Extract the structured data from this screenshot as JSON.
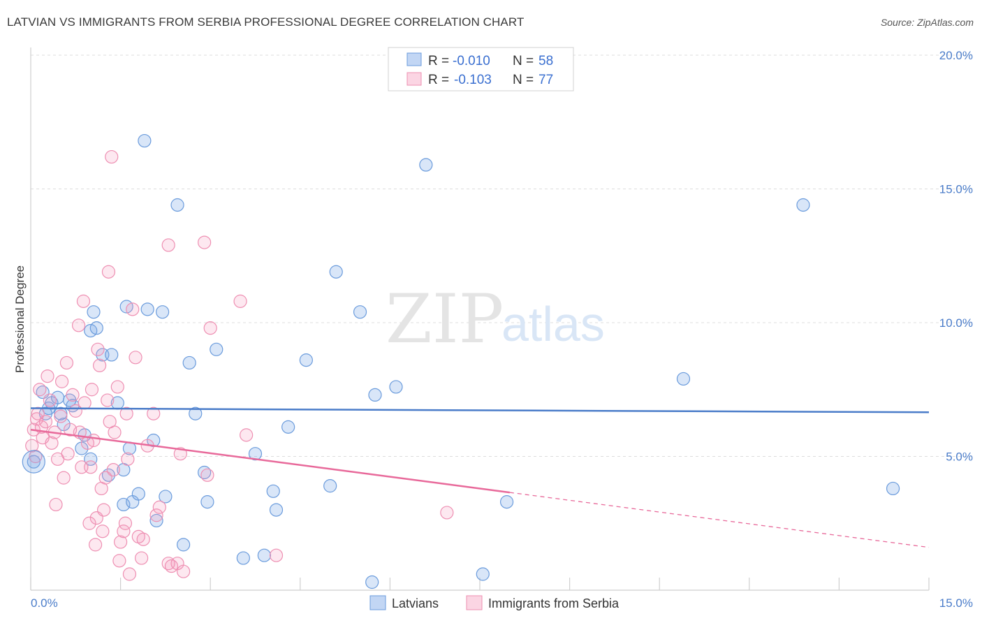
{
  "title": "LATVIAN VS IMMIGRANTS FROM SERBIA PROFESSIONAL DEGREE CORRELATION CHART",
  "source": "Source: ZipAtlas.com",
  "watermark": {
    "part1": "ZIP",
    "part2": "atlas"
  },
  "legend": {
    "r_label": "R =",
    "n_label": "N =",
    "rows": [
      {
        "name": "Latvians",
        "r": "-0.010",
        "n": "58",
        "color": "#6a9bdc"
      },
      {
        "name": "Immigrants from Serbia",
        "r": "-0.103",
        "n": "77",
        "color": "#ee8fb2"
      }
    ]
  },
  "chart_data": {
    "type": "scatter",
    "title": "LATVIAN VS IMMIGRANTS FROM SERBIA PROFESSIONAL DEGREE CORRELATION CHART",
    "xlabel": "",
    "ylabel": "Professional Degree",
    "xlim": [
      0,
      15
    ],
    "ylim": [
      0,
      20
    ],
    "x_tick_labels": [
      "0.0%",
      "15.0%"
    ],
    "y_ticks": [
      5,
      10,
      15,
      20
    ],
    "y_tick_labels": [
      "5.0%",
      "10.0%",
      "15.0%",
      "20.0%"
    ],
    "series": [
      {
        "name": "Latvians",
        "color": "#4a7cc9",
        "trend": {
          "x0": 0,
          "y0": 6.8,
          "x1": 15,
          "y1": 6.65,
          "solid_until": 15
        },
        "points": [
          [
            0.05,
            4.8
          ],
          [
            0.2,
            7.4
          ],
          [
            0.3,
            6.8
          ],
          [
            0.35,
            7.0
          ],
          [
            0.45,
            7.2
          ],
          [
            0.5,
            6.6
          ],
          [
            0.55,
            6.2
          ],
          [
            0.7,
            6.9
          ],
          [
            0.85,
            5.3
          ],
          [
            0.9,
            5.8
          ],
          [
            1.0,
            9.7
          ],
          [
            1.05,
            10.4
          ],
          [
            1.1,
            9.8
          ],
          [
            1.2,
            8.8
          ],
          [
            1.3,
            4.3
          ],
          [
            1.35,
            8.8
          ],
          [
            1.45,
            7.0
          ],
          [
            1.55,
            3.2
          ],
          [
            1.55,
            4.5
          ],
          [
            1.6,
            10.6
          ],
          [
            1.65,
            5.3
          ],
          [
            1.7,
            3.3
          ],
          [
            1.8,
            3.6
          ],
          [
            1.9,
            16.8
          ],
          [
            1.95,
            10.5
          ],
          [
            2.05,
            5.6
          ],
          [
            2.1,
            2.6
          ],
          [
            2.2,
            10.4
          ],
          [
            2.25,
            3.5
          ],
          [
            2.45,
            14.4
          ],
          [
            2.55,
            1.7
          ],
          [
            2.65,
            8.5
          ],
          [
            2.75,
            6.6
          ],
          [
            2.9,
            4.4
          ],
          [
            2.95,
            3.3
          ],
          [
            3.1,
            9.0
          ],
          [
            3.55,
            1.2
          ],
          [
            3.75,
            5.1
          ],
          [
            3.9,
            1.3
          ],
          [
            4.05,
            3.7
          ],
          [
            4.1,
            3.0
          ],
          [
            4.3,
            6.1
          ],
          [
            4.6,
            8.6
          ],
          [
            5.0,
            3.9
          ],
          [
            5.1,
            11.9
          ],
          [
            5.5,
            10.4
          ],
          [
            5.7,
            0.3
          ],
          [
            5.75,
            7.3
          ],
          [
            6.1,
            7.6
          ],
          [
            6.6,
            15.9
          ],
          [
            7.55,
            0.6
          ],
          [
            7.95,
            3.3
          ],
          [
            10.9,
            7.9
          ],
          [
            12.9,
            14.4
          ],
          [
            14.4,
            3.8
          ],
          [
            0.25,
            6.6
          ],
          [
            0.65,
            7.1
          ],
          [
            1.0,
            4.9
          ]
        ]
      },
      {
        "name": "Immigrants from Serbia",
        "color": "#e8699a",
        "trend": {
          "x0": 0,
          "y0": 6.0,
          "x1": 15,
          "y1": 1.6,
          "solid_until": 8.0
        },
        "points": [
          [
            0.02,
            5.4
          ],
          [
            0.05,
            6.0
          ],
          [
            0.08,
            5.0
          ],
          [
            0.1,
            6.4
          ],
          [
            0.15,
            7.5
          ],
          [
            0.2,
            5.7
          ],
          [
            0.25,
            6.3
          ],
          [
            0.28,
            8.0
          ],
          [
            0.32,
            7.1
          ],
          [
            0.35,
            5.5
          ],
          [
            0.4,
            5.9
          ],
          [
            0.45,
            4.9
          ],
          [
            0.5,
            6.5
          ],
          [
            0.52,
            7.8
          ],
          [
            0.55,
            4.2
          ],
          [
            0.6,
            8.5
          ],
          [
            0.62,
            5.1
          ],
          [
            0.7,
            7.3
          ],
          [
            0.75,
            6.7
          ],
          [
            0.8,
            9.9
          ],
          [
            0.82,
            5.9
          ],
          [
            0.85,
            4.6
          ],
          [
            0.88,
            10.8
          ],
          [
            0.9,
            7.0
          ],
          [
            0.95,
            5.5
          ],
          [
            1.0,
            4.6
          ],
          [
            1.02,
            7.5
          ],
          [
            1.05,
            5.6
          ],
          [
            1.1,
            2.7
          ],
          [
            1.12,
            9.0
          ],
          [
            1.15,
            8.4
          ],
          [
            1.18,
            3.8
          ],
          [
            1.2,
            2.2
          ],
          [
            1.22,
            3.0
          ],
          [
            1.25,
            4.2
          ],
          [
            1.28,
            7.1
          ],
          [
            1.3,
            11.9
          ],
          [
            1.32,
            6.3
          ],
          [
            1.35,
            16.2
          ],
          [
            1.38,
            4.5
          ],
          [
            1.4,
            5.9
          ],
          [
            1.45,
            7.6
          ],
          [
            1.48,
            1.1
          ],
          [
            1.5,
            1.8
          ],
          [
            1.55,
            2.2
          ],
          [
            1.58,
            2.5
          ],
          [
            1.6,
            6.6
          ],
          [
            1.65,
            0.6
          ],
          [
            1.7,
            10.5
          ],
          [
            1.75,
            8.7
          ],
          [
            1.8,
            2.0
          ],
          [
            1.85,
            1.2
          ],
          [
            1.88,
            1.9
          ],
          [
            1.95,
            5.4
          ],
          [
            2.05,
            6.6
          ],
          [
            2.1,
            2.8
          ],
          [
            2.15,
            3.1
          ],
          [
            2.3,
            1.0
          ],
          [
            2.35,
            0.9
          ],
          [
            2.45,
            1.0
          ],
          [
            2.5,
            5.1
          ],
          [
            2.55,
            0.7
          ],
          [
            2.3,
            12.9
          ],
          [
            2.9,
            13.0
          ],
          [
            2.95,
            4.3
          ],
          [
            3.0,
            9.8
          ],
          [
            3.5,
            10.8
          ],
          [
            3.6,
            5.8
          ],
          [
            4.1,
            1.3
          ],
          [
            6.95,
            2.9
          ],
          [
            0.12,
            6.6
          ],
          [
            0.18,
            6.1
          ],
          [
            0.42,
            3.2
          ],
          [
            0.98,
            2.5
          ],
          [
            1.08,
            1.7
          ],
          [
            1.62,
            4.9
          ],
          [
            0.66,
            6.0
          ]
        ]
      }
    ]
  },
  "bottom_legend": [
    "Latvians",
    "Immigrants from Serbia"
  ]
}
